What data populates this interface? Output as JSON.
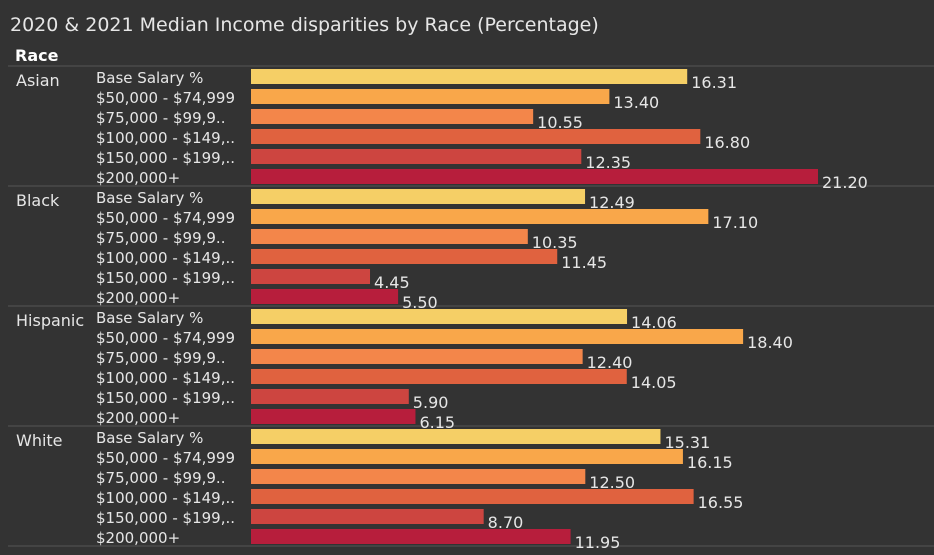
{
  "chart_title": "2020 & 2021 Median Income disparities by Race (Percentage)",
  "row_header": "Race",
  "colors": {
    "background": "#333333",
    "text": "#e6e6e6",
    "divider": "#555555",
    "bars": [
      "#f5cf66",
      "#f9a74a",
      "#f3864a",
      "#e0623f",
      "#cd4540",
      "#b71e3c"
    ]
  },
  "chart_data": {
    "type": "bar",
    "orientation": "horizontal",
    "title": "2020 & 2021 Median Income disparities by Race (Percentage)",
    "row_header": "Race",
    "xlim": [
      0,
      25.5
    ],
    "categories": [
      "Base Salary %",
      "$50,000 - $74,999",
      "$75,000  - $99,9..",
      "$100,000 - $149,..",
      "$150,000 - $199,..",
      "$200,000+"
    ],
    "groups": [
      {
        "name": "Asian",
        "values": [
          16.31,
          13.4,
          10.55,
          16.8,
          12.35,
          21.2
        ],
        "labels": [
          "16.31",
          "13.40",
          "10.55",
          "16.80",
          "12.35",
          "21.20"
        ]
      },
      {
        "name": "Black",
        "values": [
          12.49,
          17.1,
          10.35,
          11.45,
          4.45,
          5.5
        ],
        "labels": [
          "12.49",
          "17.10",
          "10.35",
          "11.45",
          "4.45",
          "5.50"
        ]
      },
      {
        "name": "Hispanic",
        "values": [
          14.06,
          18.4,
          12.4,
          14.05,
          5.9,
          6.15
        ],
        "labels": [
          "14.06",
          "18.40",
          "12.40",
          "14.05",
          "5.90",
          "6.15"
        ]
      },
      {
        "name": "White",
        "values": [
          15.31,
          16.15,
          12.5,
          16.55,
          8.7,
          11.95
        ],
        "labels": [
          "15.31",
          "16.15",
          "12.50",
          "16.55",
          "8.70",
          "11.95"
        ]
      }
    ]
  }
}
